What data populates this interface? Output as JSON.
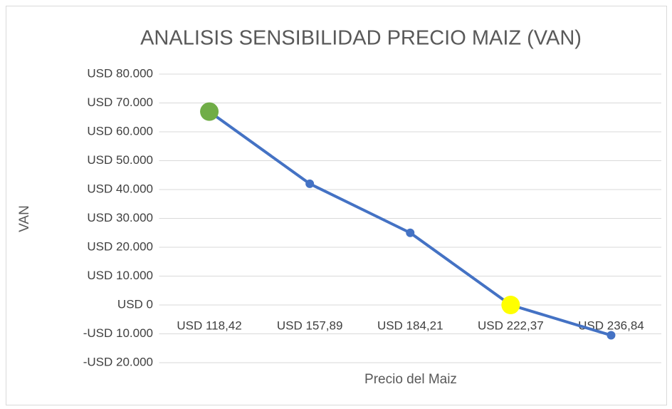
{
  "chart_data": {
    "type": "line",
    "title": "ANALISIS SENSIBILIDAD PRECIO MAIZ (VAN)",
    "x_label": "Precio del Maiz",
    "y_label": "VAN",
    "categories": [
      "USD 118,42",
      "USD 157,89",
      "USD 184,21",
      "USD 222,37",
      "USD 236,84"
    ],
    "series": [
      {
        "name": "VAN",
        "color": "#4472c4",
        "values": [
          67000,
          42000,
          25000,
          0,
          -10500
        ],
        "point_colors": [
          "#70ad47",
          "#4472c4",
          "#4472c4",
          "#ffff00",
          "#4472c4"
        ]
      }
    ],
    "ylim": [
      -20000,
      80000
    ],
    "yticks": [
      {
        "value": -20000,
        "label": "-USD 20.000"
      },
      {
        "value": -10000,
        "label": "-USD 10.000"
      },
      {
        "value": 0,
        "label": "USD 0"
      },
      {
        "value": 10000,
        "label": "USD 10.000"
      },
      {
        "value": 20000,
        "label": "USD 20.000"
      },
      {
        "value": 30000,
        "label": "USD 30.000"
      },
      {
        "value": 40000,
        "label": "USD 40.000"
      },
      {
        "value": 50000,
        "label": "USD 50.000"
      },
      {
        "value": 60000,
        "label": "USD 60.000"
      },
      {
        "value": 70000,
        "label": "USD 70.000"
      },
      {
        "value": 80000,
        "label": "USD 80.000"
      }
    ],
    "grid": true
  }
}
